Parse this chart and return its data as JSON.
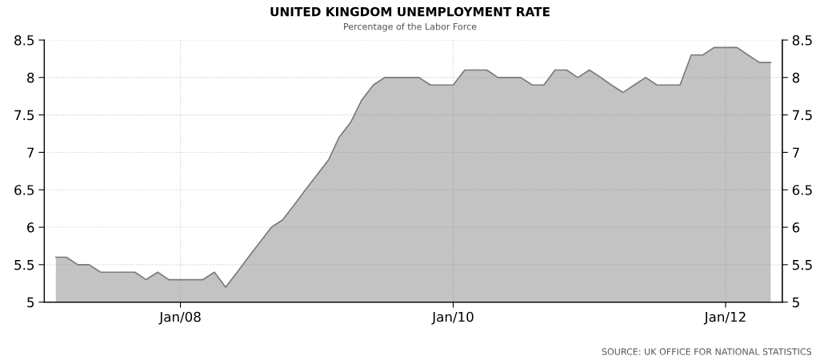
{
  "chart_data": {
    "type": "area",
    "title": "UNITED KINGDOM UNEMPLOYMENT RATE",
    "subtitle": "Percentage of the Labor Force",
    "annotations": [
      "SOURCE: UK OFFICE FOR NATIONAL STATISTICS"
    ],
    "x": [
      "2007-02",
      "2007-03",
      "2007-04",
      "2007-05",
      "2007-06",
      "2007-07",
      "2007-08",
      "2007-09",
      "2007-10",
      "2007-11",
      "2007-12",
      "2008-01",
      "2008-02",
      "2008-03",
      "2008-04",
      "2008-05",
      "2008-06",
      "2008-07",
      "2008-08",
      "2008-09",
      "2008-10",
      "2008-11",
      "2008-12",
      "2009-01",
      "2009-02",
      "2009-03",
      "2009-04",
      "2009-05",
      "2009-06",
      "2009-07",
      "2009-08",
      "2009-09",
      "2009-10",
      "2009-11",
      "2009-12",
      "2010-01",
      "2010-02",
      "2010-03",
      "2010-04",
      "2010-05",
      "2010-06",
      "2010-07",
      "2010-08",
      "2010-09",
      "2010-10",
      "2010-11",
      "2010-12",
      "2011-01",
      "2011-02",
      "2011-03",
      "2011-04",
      "2011-05",
      "2011-06",
      "2011-07",
      "2011-08",
      "2011-09",
      "2011-10",
      "2011-11",
      "2011-12",
      "2012-01",
      "2012-02",
      "2012-03",
      "2012-04",
      "2012-05"
    ],
    "series": [
      {
        "color": "#7a7a7a",
        "values": [
          5.6,
          5.6,
          5.5,
          5.5,
          5.4,
          5.4,
          5.4,
          5.4,
          5.3,
          5.4,
          5.3,
          5.3,
          5.3,
          5.3,
          5.4,
          5.2,
          5.4,
          5.6,
          5.8,
          6.0,
          6.1,
          6.3,
          6.5,
          6.7,
          6.9,
          7.2,
          7.4,
          7.7,
          7.9,
          8.0,
          8.0,
          8.0,
          8.0,
          7.9,
          7.9,
          7.9,
          8.1,
          8.1,
          8.1,
          8.0,
          8.0,
          8.0,
          7.9,
          7.9,
          8.1,
          8.1,
          8.0,
          8.1,
          8.0,
          7.9,
          7.8,
          7.9,
          8.0,
          7.9,
          7.9,
          7.9,
          8.3,
          8.3,
          8.4,
          8.4,
          8.4,
          8.3,
          8.2,
          8.2
        ]
      }
    ],
    "xlim": [
      "2007-01",
      "2012-06"
    ],
    "xticks": [
      {
        "value": "2008-01",
        "label": "Jan/08"
      },
      {
        "value": "2010-01",
        "label": "Jan/10"
      },
      {
        "value": "2012-01",
        "label": "Jan/12"
      }
    ],
    "ylim": [
      5,
      8.5
    ],
    "yticks": [
      5,
      5.5,
      6,
      6.5,
      7,
      7.5,
      8,
      8.5
    ],
    "y2lim": [
      5,
      8.5
    ],
    "y2ticks": [
      5,
      5.5,
      6,
      6.5,
      7,
      7.5,
      8,
      8.5
    ],
    "grid": true,
    "line_style": "solid"
  }
}
